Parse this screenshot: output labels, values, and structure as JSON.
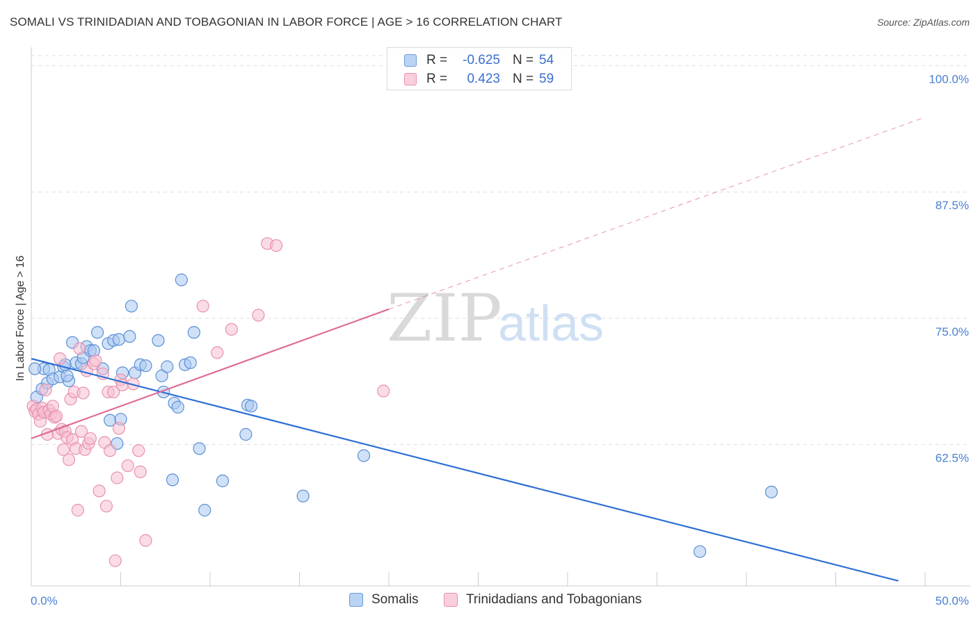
{
  "title": "SOMALI VS TRINIDADIAN AND TOBAGONIAN IN LABOR FORCE | AGE > 16 CORRELATION CHART",
  "source": "Source: ZipAtlas.com",
  "watermark": {
    "part1": "ZIP",
    "part2": "atlas"
  },
  "legend": {
    "rows": [
      {
        "r_label": "R =",
        "r_value": "-0.625",
        "n_label": "N =",
        "n_value": "54"
      },
      {
        "r_label": "R =",
        "r_value": "0.423",
        "n_label": "N =",
        "n_value": "59"
      }
    ]
  },
  "chart_data": {
    "type": "scatter",
    "title": "SOMALI VS TRINIDADIAN AND TOBAGONIAN IN LABOR FORCE | AGE > 16 CORRELATION CHART",
    "xlabel": "",
    "ylabel": "In Labor Force | Age > 16",
    "xlim": [
      0,
      50
    ],
    "ylim": [
      48.5,
      101
    ],
    "x_tick_labels": [
      "0.0%",
      "50.0%"
    ],
    "y_ticks": [
      62.5,
      75.0,
      87.5,
      100.0
    ],
    "y_tick_labels": [
      "62.5%",
      "75.0%",
      "87.5%",
      "100.0%"
    ],
    "grid": true,
    "legend_position": "top-center",
    "series": [
      {
        "name": "Somalis",
        "color": "#a9c8f0",
        "stroke": "#5b8fd6",
        "line_color": "#2e6fd4",
        "r": -0.625,
        "n": 54,
        "trend": {
          "x": [
            0,
            48.5
          ],
          "y": [
            71.0,
            49.0
          ],
          "dashed_extension": false
        },
        "points": [
          [
            0.3,
            67.2
          ],
          [
            0.6,
            68.0
          ],
          [
            0.9,
            68.6
          ],
          [
            0.7,
            70.0
          ],
          [
            1.0,
            69.9
          ],
          [
            1.2,
            69.0
          ],
          [
            1.6,
            69.2
          ],
          [
            1.8,
            70.2
          ],
          [
            1.9,
            70.4
          ],
          [
            2.1,
            68.8
          ],
          [
            2.3,
            72.6
          ],
          [
            2.5,
            70.6
          ],
          [
            2.8,
            70.5
          ],
          [
            2.9,
            71.1
          ],
          [
            3.1,
            72.2
          ],
          [
            3.3,
            71.8
          ],
          [
            3.5,
            71.8
          ],
          [
            3.7,
            73.6
          ],
          [
            4.0,
            70.0
          ],
          [
            4.3,
            72.5
          ],
          [
            4.4,
            64.9
          ],
          [
            4.6,
            72.8
          ],
          [
            4.8,
            62.6
          ],
          [
            4.9,
            72.9
          ],
          [
            5.0,
            65.0
          ],
          [
            5.1,
            69.6
          ],
          [
            5.5,
            73.2
          ],
          [
            5.6,
            76.2
          ],
          [
            5.8,
            69.6
          ],
          [
            6.1,
            70.4
          ],
          [
            6.4,
            70.3
          ],
          [
            7.1,
            72.8
          ],
          [
            7.3,
            69.3
          ],
          [
            7.4,
            67.7
          ],
          [
            7.6,
            70.2
          ],
          [
            7.9,
            59.0
          ],
          [
            8.0,
            66.6
          ],
          [
            8.2,
            66.2
          ],
          [
            8.4,
            78.8
          ],
          [
            8.6,
            70.4
          ],
          [
            8.9,
            70.6
          ],
          [
            9.1,
            73.6
          ],
          [
            9.4,
            62.1
          ],
          [
            9.7,
            56.0
          ],
          [
            10.7,
            58.9
          ],
          [
            12.1,
            66.4
          ],
          [
            12.3,
            66.3
          ],
          [
            12.0,
            63.5
          ],
          [
            15.2,
            57.4
          ],
          [
            18.6,
            61.4
          ],
          [
            37.4,
            51.9
          ],
          [
            41.4,
            57.8
          ],
          [
            0.2,
            70.0
          ],
          [
            2.0,
            69.3
          ]
        ]
      },
      {
        "name": "Trinidadians and Tobagonians",
        "color": "#f6c0d2",
        "stroke": "#e891ae",
        "line_color": "#e06b95",
        "r": 0.423,
        "n": 59,
        "trend": {
          "x": [
            0,
            20.0
          ],
          "y": [
            63.1,
            75.9
          ],
          "dashed_extension": {
            "x": [
              20.0,
              50.0
            ],
            "y": [
              75.9,
              94.9
            ]
          }
        },
        "points": [
          [
            0.1,
            66.3
          ],
          [
            0.2,
            65.8
          ],
          [
            0.3,
            66.0
          ],
          [
            0.4,
            65.5
          ],
          [
            0.5,
            64.8
          ],
          [
            0.6,
            66.1
          ],
          [
            0.7,
            65.7
          ],
          [
            0.8,
            67.9
          ],
          [
            0.9,
            63.5
          ],
          [
            1.0,
            65.9
          ],
          [
            1.1,
            65.5
          ],
          [
            1.2,
            66.3
          ],
          [
            1.3,
            65.2
          ],
          [
            1.4,
            65.3
          ],
          [
            1.5,
            63.6
          ],
          [
            1.6,
            71.0
          ],
          [
            1.7,
            64.0
          ],
          [
            1.8,
            62.0
          ],
          [
            1.9,
            63.8
          ],
          [
            2.0,
            63.2
          ],
          [
            2.1,
            61.0
          ],
          [
            2.2,
            67.0
          ],
          [
            2.3,
            63.0
          ],
          [
            2.4,
            67.7
          ],
          [
            2.5,
            62.1
          ],
          [
            2.6,
            56.0
          ],
          [
            2.7,
            72.0
          ],
          [
            2.8,
            63.8
          ],
          [
            2.9,
            67.6
          ],
          [
            3.0,
            62.0
          ],
          [
            3.1,
            69.8
          ],
          [
            3.2,
            62.6
          ],
          [
            3.3,
            63.1
          ],
          [
            3.5,
            70.5
          ],
          [
            3.6,
            70.8
          ],
          [
            3.8,
            57.9
          ],
          [
            4.0,
            69.5
          ],
          [
            4.1,
            62.7
          ],
          [
            4.2,
            56.4
          ],
          [
            4.3,
            67.7
          ],
          [
            4.4,
            61.9
          ],
          [
            4.6,
            67.7
          ],
          [
            4.7,
            51.0
          ],
          [
            4.8,
            59.2
          ],
          [
            4.9,
            64.1
          ],
          [
            5.0,
            68.9
          ],
          [
            5.1,
            68.4
          ],
          [
            5.4,
            60.4
          ],
          [
            5.7,
            68.5
          ],
          [
            6.0,
            61.9
          ],
          [
            6.1,
            59.8
          ],
          [
            6.4,
            53.0
          ],
          [
            9.6,
            76.2
          ],
          [
            10.4,
            71.6
          ],
          [
            11.2,
            73.9
          ],
          [
            12.7,
            75.3
          ],
          [
            13.2,
            82.4
          ],
          [
            13.7,
            82.2
          ],
          [
            19.7,
            67.8
          ]
        ]
      }
    ]
  }
}
